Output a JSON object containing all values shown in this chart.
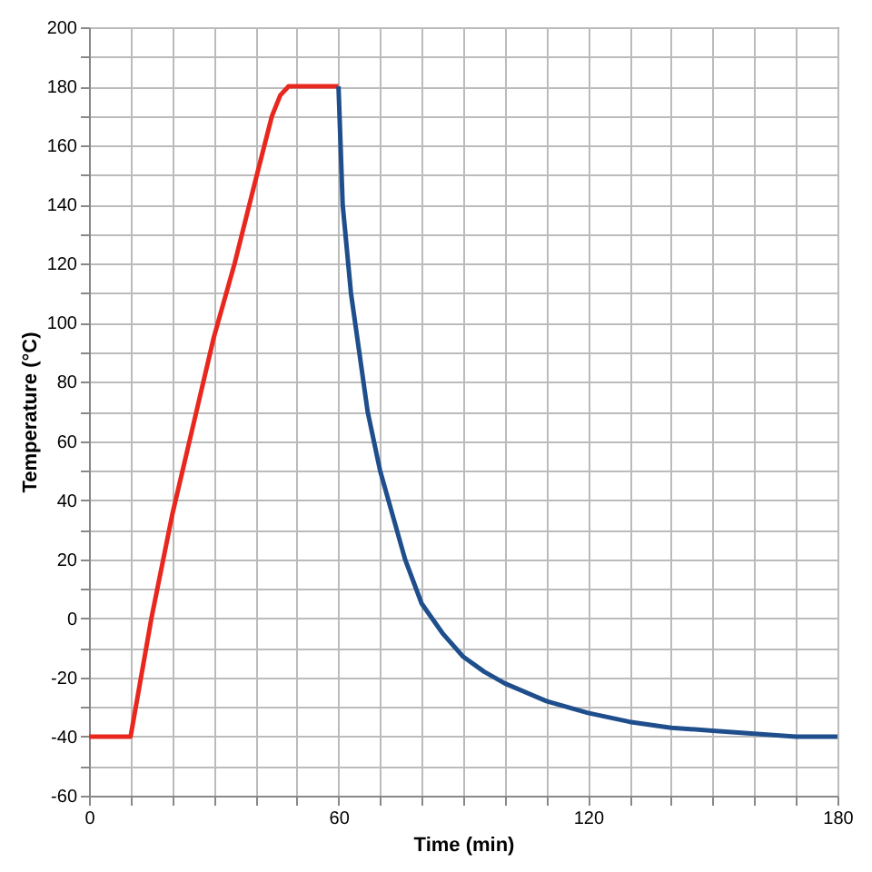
{
  "chart_data": {
    "type": "line",
    "xlabel": "Time (min)",
    "ylabel": "Temperature (°C)",
    "xlim": [
      0,
      180
    ],
    "ylim": [
      -60,
      200
    ],
    "xticks": [
      0,
      {
        "value": 10,
        "label": null
      },
      {
        "value": 20,
        "label": null
      },
      {
        "value": 30,
        "label": null
      },
      {
        "value": 40,
        "label": null
      },
      {
        "value": 50,
        "label": null
      },
      60,
      {
        "value": 70,
        "label": null
      },
      {
        "value": 80,
        "label": null
      },
      {
        "value": 90,
        "label": null
      },
      {
        "value": 100,
        "label": null
      },
      {
        "value": 110,
        "label": null
      },
      120,
      {
        "value": 130,
        "label": null
      },
      {
        "value": 140,
        "label": null
      },
      {
        "value": 150,
        "label": null
      },
      {
        "value": 160,
        "label": null
      },
      {
        "value": 170,
        "label": null
      },
      180
    ],
    "yticks": [
      -60,
      {
        "value": -50,
        "label": null
      },
      -40,
      {
        "value": -30,
        "label": null
      },
      -20,
      {
        "value": -10,
        "label": null
      },
      0,
      {
        "value": 10,
        "label": null
      },
      20,
      {
        "value": 30,
        "label": null
      },
      40,
      {
        "value": 50,
        "label": null
      },
      60,
      {
        "value": 70,
        "label": null
      },
      80,
      {
        "value": 90,
        "label": null
      },
      100,
      {
        "value": 110,
        "label": null
      },
      120,
      {
        "value": 130,
        "label": null
      },
      140,
      {
        "value": 150,
        "label": null
      },
      160,
      {
        "value": 170,
        "label": null
      },
      180,
      {
        "value": 190,
        "label": null
      },
      200
    ],
    "grid": true,
    "marker": "none",
    "line_style": "solid",
    "series": [
      {
        "color": "#e8281e",
        "x": [
          0,
          10,
          15,
          20,
          25,
          30,
          35,
          40,
          44,
          46,
          48,
          60
        ],
        "values": [
          -40,
          -40,
          0,
          35,
          65,
          95,
          120,
          148,
          170,
          177,
          180,
          180
        ]
      },
      {
        "color": "#1f4e8c",
        "x": [
          60,
          61,
          63,
          65,
          67,
          70,
          73,
          76,
          80,
          85,
          90,
          95,
          100,
          110,
          120,
          130,
          140,
          150,
          160,
          170,
          180
        ],
        "values": [
          180,
          140,
          110,
          90,
          70,
          50,
          35,
          20,
          5,
          -5,
          -13,
          -18,
          -22,
          -28,
          -32,
          -35,
          -37,
          -38,
          -39,
          -40,
          -40
        ]
      }
    ]
  }
}
